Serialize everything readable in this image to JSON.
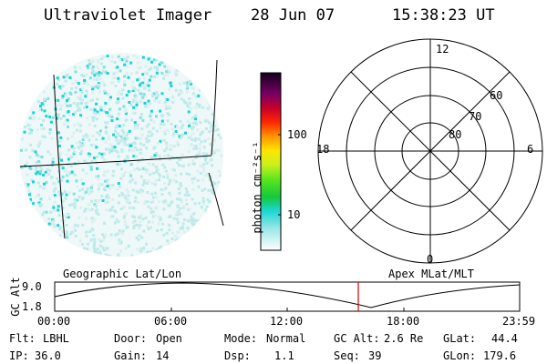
{
  "header": {
    "instrument": "Ultraviolet Imager",
    "date": "28 Jun 07",
    "time": "15:38:23 UT"
  },
  "colorbar": {
    "unit_label": "photon cm⁻²s⁻¹",
    "ticks": [
      "100",
      "10"
    ],
    "scale": "log"
  },
  "polar_plot": {
    "mlt_labels": [
      "12",
      "18",
      "6",
      "0"
    ],
    "lat_labels": [
      "60",
      "70",
      "80"
    ]
  },
  "orbit_strip": {
    "left_label": "Geographic Lat/Lon",
    "right_label": "Apex MLat/MLT",
    "axis_label": "GC Alt",
    "y_ticks": [
      "9.0",
      "1.8"
    ],
    "x_ticks": [
      "00:00",
      "06:00",
      "12:00",
      "18:00",
      "23:59"
    ],
    "marker_color": "#dd0000"
  },
  "footer": {
    "flt_label": "Flt:",
    "flt_value": "LBHL",
    "ip_label": "IP:",
    "ip_value": "36.0",
    "door_label": "Door:",
    "door_value": "Open",
    "gain_label": "Gain:",
    "gain_value": "14",
    "mode_label": "Mode:",
    "mode_value": "Normal",
    "dsp_label": "Dsp:",
    "dsp_value": "1.1",
    "gcalt_label": "GC Alt:",
    "gcalt_value": "2.6 Re",
    "seq_label": "Seq:",
    "seq_value": "39",
    "glat_label": "GLat:",
    "glat_value": "44.4",
    "glon_label": "GLon:",
    "glon_value": "179.6"
  }
}
